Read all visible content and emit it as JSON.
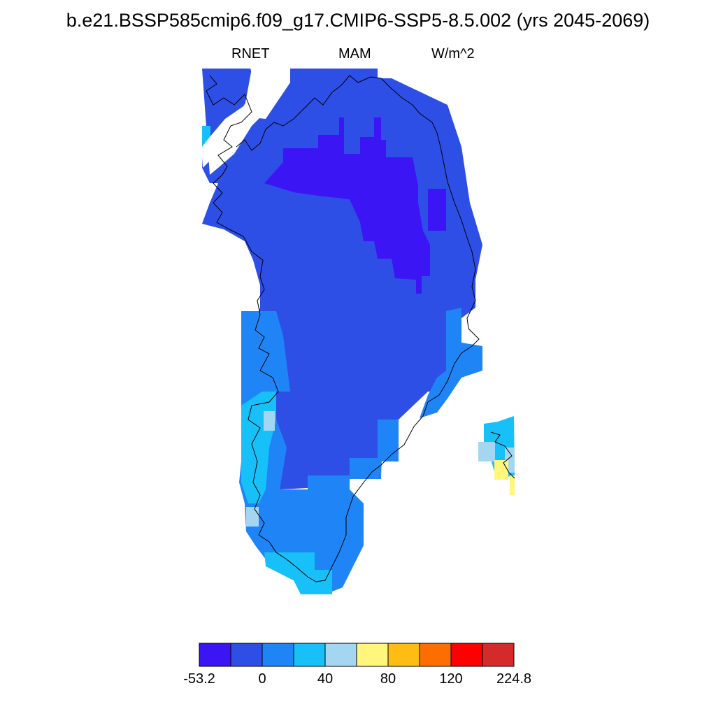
{
  "title": "b.e21.BSSP585cmip6.f09_g17.CMIP6-SSP5-8.5.002 (yrs 2045-2069)",
  "variable": "RNET",
  "season": "MAM",
  "units": "W/m^2",
  "colorbar": {
    "colors": [
      "#3b15f4",
      "#2e4fe6",
      "#1f85f7",
      "#17c0f8",
      "#a4d6f2",
      "#fff67b",
      "#fdbd13",
      "#fd6e00",
      "#fd0001",
      "#d42a2a"
    ],
    "tick_labels": [
      "-53.2",
      "0",
      "40",
      "80",
      "120",
      "224.8"
    ]
  }
}
